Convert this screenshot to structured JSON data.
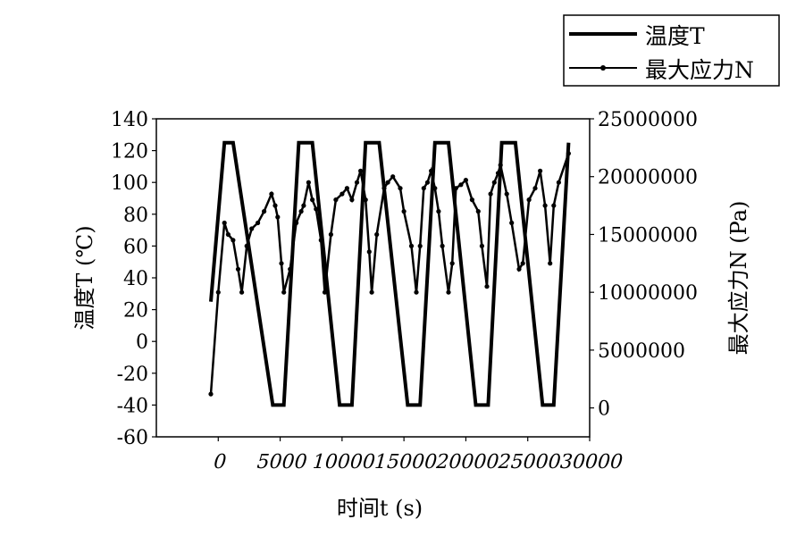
{
  "chart_data": {
    "type": "line",
    "title": "",
    "xlabel": "时间t (s)",
    "ylabel_left": "温度T (℃)",
    "ylabel_right": "最大应力N (Pa)",
    "xlim": [
      -5000,
      30000
    ],
    "ylim_left": [
      -60,
      140
    ],
    "ylim_right": [
      -2500000,
      25000000
    ],
    "x_ticks": [
      "0",
      "5000",
      "10000",
      "15000",
      "20000",
      "25000",
      "30000"
    ],
    "y_ticks_left": [
      "140",
      "120",
      "100",
      "80",
      "60",
      "40",
      "20",
      "0",
      "-20",
      "-40",
      "-60"
    ],
    "y_ticks_right": [
      "25000000",
      "20000000",
      "15000000",
      "10000000",
      "5000000",
      "0"
    ],
    "legend_position": "above-right",
    "grid": false,
    "series": [
      {
        "name": "温度T",
        "axis": "left",
        "marker": "none",
        "color": "#000000",
        "x": [
          -600,
          500,
          1200,
          4400,
          5300,
          6500,
          7600,
          9800,
          10800,
          11900,
          13000,
          15300,
          16300,
          17500,
          18600,
          20800,
          21800,
          22900,
          24000,
          26200,
          27100,
          28300
        ],
        "y": [
          25,
          125,
          125,
          -40,
          -40,
          125,
          125,
          -40,
          -40,
          125,
          125,
          -40,
          -40,
          125,
          125,
          -40,
          -40,
          125,
          125,
          -40,
          -40,
          125
        ]
      },
      {
        "name": "最大应力N",
        "axis": "right",
        "marker": "dot",
        "color": "#000000",
        "x": [
          -600,
          0,
          500,
          800,
          1200,
          1600,
          1900,
          2300,
          2700,
          3200,
          3700,
          4300,
          4600,
          4800,
          5100,
          5300,
          5800,
          6300,
          6700,
          6900,
          7300,
          7600,
          7900,
          8300,
          8600,
          9100,
          9500,
          10000,
          10400,
          10800,
          11200,
          11500,
          11900,
          12200,
          12400,
          12800,
          13400,
          13700,
          14100,
          14700,
          15000,
          15600,
          16000,
          16300,
          16600,
          16900,
          17200,
          17500,
          17800,
          18100,
          18600,
          18900,
          19200,
          19600,
          20000,
          20500,
          21000,
          21300,
          21700,
          22000,
          22300,
          22600,
          22800,
          23300,
          23700,
          24300,
          24600,
          25100,
          25600,
          26000,
          26400,
          26800,
          27100,
          27500,
          28300
        ],
        "y": [
          1200000,
          10000000,
          16000000,
          15000000,
          14500000,
          12000000,
          10000000,
          14000000,
          15500000,
          16000000,
          17000000,
          18500000,
          17500000,
          16500000,
          12500000,
          10000000,
          12000000,
          16000000,
          17000000,
          17500000,
          19500000,
          18000000,
          17200000,
          14500000,
          10000000,
          15000000,
          18000000,
          18500000,
          19000000,
          18000000,
          19500000,
          20500000,
          18000000,
          13500000,
          10000000,
          15000000,
          19000000,
          19500000,
          20000000,
          19000000,
          17000000,
          14000000,
          10000000,
          14000000,
          19000000,
          19500000,
          20500000,
          19000000,
          17000000,
          14000000,
          10000000,
          12500000,
          19000000,
          19300000,
          19700000,
          18000000,
          17000000,
          14000000,
          10500000,
          18500000,
          19500000,
          20300000,
          21000000,
          18500000,
          16000000,
          12000000,
          12500000,
          18000000,
          19000000,
          20500000,
          17500000,
          12500000,
          17500000,
          19500000,
          22000000
        ]
      }
    ]
  }
}
